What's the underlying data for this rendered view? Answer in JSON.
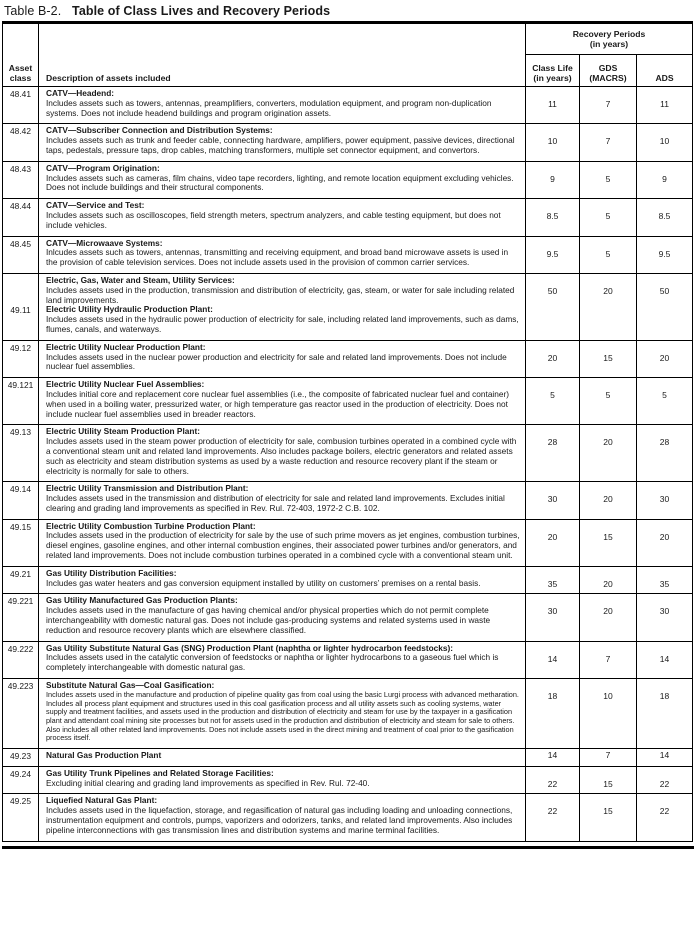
{
  "title": {
    "prefix": "Table B-2.",
    "main": "Table of Class Lives and Recovery Periods"
  },
  "header": {
    "asset_class": "Asset\nclass",
    "description": "Description of assets included",
    "recovery_group": "Recovery Periods\n(in years)",
    "class_life": "Class Life\n(in years)",
    "gds": "GDS\n(MACRS)",
    "ads": "ADS"
  },
  "rows": [
    {
      "asset_class": "48.41",
      "segments": [
        {
          "heading": "CATV—Headend:",
          "body": "Includes assets such as towers, antennas, preamplifiers, converters, modulation equipment, and program non-duplication systems. Does not include headend buildings and program origination assets."
        }
      ],
      "class_life": "11",
      "gds": "7",
      "ads": "11"
    },
    {
      "asset_class": "48.42",
      "segments": [
        {
          "heading": "CATV—Subscriber Connection and Distribution Systems:",
          "body": "Includes assets such as trunk and feeder cable, connecting hardware, amplifiers, power equipment, passive devices, directional taps, pedestals, pressure taps, drop cables, matching transformers, multiple set connector equipment, and convertors."
        }
      ],
      "class_life": "10",
      "gds": "7",
      "ads": "10"
    },
    {
      "asset_class": "48.43",
      "segments": [
        {
          "heading": "CATV—Program Origination:",
          "body": "Includes assets such as cameras, film chains, video tape recorders, lighting, and remote location equipment excluding vehicles. Does not include buildings and their structural components."
        }
      ],
      "class_life": "9",
      "gds": "5",
      "ads": "9"
    },
    {
      "asset_class": "48.44",
      "segments": [
        {
          "heading": "CATV—Service and Test:",
          "body": "Includes assets such as oscilloscopes, field strength meters, spectrum analyzers, and cable testing equipment, but does not include vehicles."
        }
      ],
      "class_life": "8.5",
      "gds": "5",
      "ads": "8.5"
    },
    {
      "asset_class": "48.45",
      "segments": [
        {
          "heading": "CATV—Microwaave Systems:",
          "body": "Inlcudes assets such as towers, antennas, transmitting and receiving equipment, and broad band microwave assets is used in the provision of cable television services. Does not include assets used in the provision of common carrier services."
        }
      ],
      "class_life": "9.5",
      "gds": "5",
      "ads": "9.5"
    },
    {
      "asset_class": "49.11",
      "segments": [
        {
          "heading": "Electric, Gas, Water and Steam, Utility Services:",
          "body": "Includes assets used in the production, transmission and distribution of electricity, gas, steam, or water for sale including related land improvements."
        },
        {
          "heading": "Electric Utility Hydraulic Production Plant:",
          "body": "Includes assets used in the hydraulic power production of electricity for sale, including related land improvements, such as dams, flumes, canals, and waterways."
        }
      ],
      "class_life": "50",
      "gds": "20",
      "ads": "50"
    },
    {
      "asset_class": "49.12",
      "segments": [
        {
          "heading": "Electric Utility Nuclear Production Plant:",
          "body": "Includes assets used in the nuclear power production and electricity for sale and related land improvements. Does not include nuclear fuel assemblies."
        }
      ],
      "class_life": "20",
      "gds": "15",
      "ads": "20"
    },
    {
      "asset_class": "49.121",
      "segments": [
        {
          "heading": "Electric Utility Nuclear Fuel Assemblies:",
          "body": "Includes initial core and replacement core nuclear fuel assemblies (i.e., the composite of fabricated nuclear fuel and container) when used in a boiling water, pressurized water, or high temperature gas reactor used in the production of electricity. Does not include nuclear fuel assemblies used in breader reactors."
        }
      ],
      "class_life": "5",
      "gds": "5",
      "ads": "5"
    },
    {
      "asset_class": "49.13",
      "segments": [
        {
          "heading": "Electric Utility Steam Production Plant:",
          "body": "Includes assets used in the steam power production of electricity for sale, combusion turbines operated in a combined cycle with a conventional steam unit and related land improvements. Also includes package boilers, electric generators and related assets such as electricity and steam distribution systems as used by a waste reduction and resource recovery plant if the steam or electricity is normally for sale to others."
        }
      ],
      "class_life": "28",
      "gds": "20",
      "ads": "28"
    },
    {
      "asset_class": "49.14",
      "segments": [
        {
          "heading": "Electric Utility Transmission and Distribution Plant:",
          "body": "Includes assets used in the transmission and distribution of electricity for sale and related land improvements. Excludes initial clearing and grading land improvements as specified in Rev. Rul. 72-403, 1972-2 C.B. 102."
        }
      ],
      "class_life": "30",
      "gds": "20",
      "ads": "30"
    },
    {
      "asset_class": "49.15",
      "segments": [
        {
          "heading": "Electric Utility Combustion Turbine Production Plant:",
          "body": "Includes assets used in the production of electricity for sale by the use of such prime movers as jet engines, combustion turbines, diesel engines, gasoline engines, and other internal combustion engines, their associated power turbines and/or generators, and related land improvements. Does not include combustion turbines operated in a combined cycle with a conventional steam unit."
        }
      ],
      "class_life": "20",
      "gds": "15",
      "ads": "20"
    },
    {
      "asset_class": "49.21",
      "segments": [
        {
          "heading": "Gas Utility Distribution Facilities:",
          "body": "Includes gas water heaters and gas conversion equipment installed by utility on customers’ premises on a rental basis."
        }
      ],
      "class_life": "35",
      "gds": "20",
      "ads": "35"
    },
    {
      "asset_class": "49.221",
      "segments": [
        {
          "heading": "Gas Utility Manufactured Gas Production Plants:",
          "body": "Includes assets used in the manufacture of gas having chemical and/or physical properties which do not permit complete interchangeability with domestic natural gas. Does not include gas-producing systems and related systems used in waste reduction and resource recovery plants which are elsewhere classified."
        }
      ],
      "class_life": "30",
      "gds": "20",
      "ads": "30"
    },
    {
      "asset_class": "49.222",
      "segments": [
        {
          "heading": "Gas Utility Substitute Natural Gas (SNG) Production Plant (naphtha or lighter hydrocarbon feedstocks):",
          "body": "Includes assets used in the catalytic conversion of feedstocks or naphtha or lighter hydrocarbons to a gaseous fuel which is completely interchangeable with domestic natural gas."
        }
      ],
      "class_life": "14",
      "gds": "7",
      "ads": "14"
    },
    {
      "asset_class": "49.223",
      "segments": [
        {
          "heading": "Substitute Natural Gas—Coal Gasification:",
          "body": "Includes assets used in the manufacture and production of pipeline quality gas from coal using the basic Lurgi process with advanced metharation. Includes all process plant equipment and structures used in this coal gasification process and all utility assets such as cooling systems, water supply and treatment facilities, and assets used in the production and distribution of electricity and steam for use by the taxpayer in a gasification plant and attendant coal mining site processes but not for assets used in the production and distribution of electricity and steam for sale to others. Also includes all other related land improvements. Does not include assets used in the direct mining and treatment of coal prior to the gasification process itself."
        }
      ],
      "class_life": "18",
      "gds": "10",
      "ads": "18"
    },
    {
      "asset_class": "49.23",
      "segments": [
        {
          "heading": "Natural Gas Production Plant",
          "body": ""
        }
      ],
      "class_life": "14",
      "gds": "7",
      "ads": "14"
    },
    {
      "asset_class": "49.24",
      "segments": [
        {
          "heading": "Gas Utility Trunk Pipelines and Related Storage Facilities:",
          "body": "Excluding initial clearing and grading land improvements as specified in Rev. Rul. 72-40."
        }
      ],
      "class_life": "22",
      "gds": "15",
      "ads": "22"
    },
    {
      "asset_class": "49.25",
      "segments": [
        {
          "heading": "Liquefied Natural Gas Plant:",
          "body": "Includes assets used in the liquefaction, storage, and regasification of natural gas including loading and unloading connections, instrumentation equipment and controls, pumps, vaporizers and odorizers, tanks, and related land improvements. Also includes pipeline interconnections with gas transmission lines and distribution systems and marine terminal facilities."
        }
      ],
      "class_life": "22",
      "gds": "15",
      "ads": "22"
    }
  ]
}
